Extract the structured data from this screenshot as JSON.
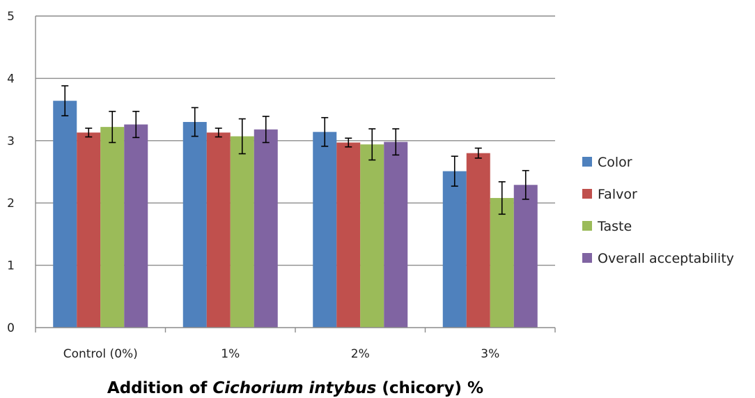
{
  "chart_data": {
    "type": "bar",
    "categories": [
      "Control (0%)",
      "1%",
      "2%",
      "3%"
    ],
    "series": [
      {
        "name": "Color",
        "color": "#4f81bd",
        "values": [
          3.64,
          3.3,
          3.14,
          2.51
        ],
        "errors": [
          0.24,
          0.23,
          0.23,
          0.24
        ]
      },
      {
        "name": "Falvor",
        "color": "#c0504d",
        "values": [
          3.13,
          3.13,
          2.97,
          2.8
        ],
        "errors": [
          0.07,
          0.07,
          0.07,
          0.08
        ]
      },
      {
        "name": "Taste",
        "color": "#9bbb59",
        "values": [
          3.22,
          3.07,
          2.94,
          2.08
        ],
        "errors": [
          0.25,
          0.28,
          0.25,
          0.26
        ]
      },
      {
        "name": "Overall acceptability",
        "color": "#8064a2",
        "values": [
          3.26,
          3.18,
          2.98,
          2.29
        ],
        "errors": [
          0.21,
          0.21,
          0.21,
          0.23
        ]
      }
    ],
    "ylim": [
      0,
      5
    ],
    "yticks": [
      "0",
      "1",
      "2",
      "3",
      "4",
      "5"
    ],
    "grid": true,
    "legend_position": "right",
    "xlabel": {
      "prefix": "Addition of ",
      "italic": "Cichorium intybus",
      "suffix": " (chicory) %"
    },
    "ylabel": ""
  }
}
